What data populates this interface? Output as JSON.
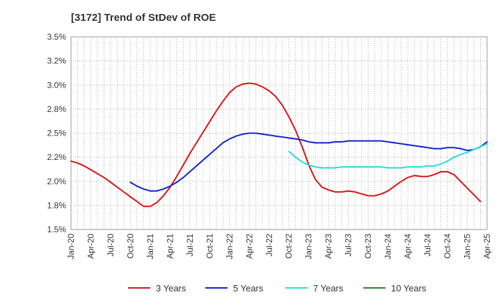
{
  "chart_data": {
    "type": "line",
    "title": "[3172]  Trend of StDev of ROE",
    "xlabel": "",
    "ylabel": "",
    "ylim": [
      1.5,
      3.5
    ],
    "y_ticks": [
      1.5,
      1.75,
      2.0,
      2.25,
      2.5,
      2.75,
      3.0,
      3.25,
      3.5
    ],
    "y_tick_labels": [
      "1.5%",
      "1.8%",
      "2.0%",
      "2.2%",
      "2.5%",
      "2.8%",
      "3.0%",
      "3.2%",
      "3.5%"
    ],
    "x_tick_labels": [
      "Jan-20",
      "Apr-20",
      "Jul-20",
      "Oct-20",
      "Jan-21",
      "Apr-21",
      "Jul-21",
      "Oct-21",
      "Jan-22",
      "Apr-22",
      "Jul-22",
      "Oct-22",
      "Jan-23",
      "Apr-23",
      "Jul-23",
      "Oct-23",
      "Jan-24",
      "Apr-24",
      "Jul-24",
      "Oct-24",
      "Jan-25",
      "Apr-25"
    ],
    "grid": true,
    "legend_position": "bottom",
    "series": [
      {
        "name": "3 Years",
        "color": "#dd1111",
        "points": [
          [
            "Jan-20",
            2.21
          ],
          [
            "Feb-20",
            2.19
          ],
          [
            "Mar-20",
            2.16
          ],
          [
            "Apr-20",
            2.12
          ],
          [
            "May-20",
            2.08
          ],
          [
            "Jun-20",
            2.04
          ],
          [
            "Jul-20",
            1.99
          ],
          [
            "Aug-20",
            1.94
          ],
          [
            "Sep-20",
            1.89
          ],
          [
            "Oct-20",
            1.84
          ],
          [
            "Nov-20",
            1.79
          ],
          [
            "Dec-20",
            1.74
          ],
          [
            "Jan-21",
            1.74
          ],
          [
            "Feb-21",
            1.78
          ],
          [
            "Mar-21",
            1.85
          ],
          [
            "Apr-21",
            1.94
          ],
          [
            "May-21",
            2.05
          ],
          [
            "Jun-21",
            2.17
          ],
          [
            "Jul-21",
            2.29
          ],
          [
            "Aug-21",
            2.4
          ],
          [
            "Sep-21",
            2.51
          ],
          [
            "Oct-21",
            2.62
          ],
          [
            "Nov-21",
            2.73
          ],
          [
            "Dec-21",
            2.83
          ],
          [
            "Jan-22",
            2.92
          ],
          [
            "Feb-22",
            2.98
          ],
          [
            "Mar-22",
            3.01
          ],
          [
            "Apr-22",
            3.02
          ],
          [
            "May-22",
            3.01
          ],
          [
            "Jun-22",
            2.98
          ],
          [
            "Jul-22",
            2.94
          ],
          [
            "Aug-22",
            2.88
          ],
          [
            "Sep-22",
            2.79
          ],
          [
            "Oct-22",
            2.67
          ],
          [
            "Nov-22",
            2.53
          ],
          [
            "Dec-22",
            2.36
          ],
          [
            "Jan-23",
            2.17
          ],
          [
            "Feb-23",
            2.02
          ],
          [
            "Mar-23",
            1.94
          ],
          [
            "Apr-23",
            1.91
          ],
          [
            "May-23",
            1.89
          ],
          [
            "Jun-23",
            1.89
          ],
          [
            "Jul-23",
            1.9
          ],
          [
            "Aug-23",
            1.89
          ],
          [
            "Sep-23",
            1.87
          ],
          [
            "Oct-23",
            1.85
          ],
          [
            "Nov-23",
            1.85
          ],
          [
            "Dec-23",
            1.87
          ],
          [
            "Jan-24",
            1.9
          ],
          [
            "Feb-24",
            1.95
          ],
          [
            "Mar-24",
            2.0
          ],
          [
            "Apr-24",
            2.04
          ],
          [
            "May-24",
            2.06
          ],
          [
            "Jun-24",
            2.05
          ],
          [
            "Jul-24",
            2.05
          ],
          [
            "Aug-24",
            2.07
          ],
          [
            "Sep-24",
            2.1
          ],
          [
            "Oct-24",
            2.1
          ],
          [
            "Nov-24",
            2.07
          ],
          [
            "Dec-24",
            2.0
          ],
          [
            "Jan-25",
            1.93
          ],
          [
            "Feb-25",
            1.86
          ],
          [
            "Mar-25",
            1.79
          ]
        ]
      },
      {
        "name": "5 Years",
        "color": "#1122cc",
        "points": [
          [
            "Oct-20",
            1.99
          ],
          [
            "Nov-20",
            1.95
          ],
          [
            "Dec-20",
            1.92
          ],
          [
            "Jan-21",
            1.9
          ],
          [
            "Feb-21",
            1.9
          ],
          [
            "Mar-21",
            1.92
          ],
          [
            "Apr-21",
            1.95
          ],
          [
            "May-21",
            1.99
          ],
          [
            "Jun-21",
            2.04
          ],
          [
            "Jul-21",
            2.1
          ],
          [
            "Aug-21",
            2.16
          ],
          [
            "Sep-21",
            2.22
          ],
          [
            "Oct-21",
            2.28
          ],
          [
            "Nov-21",
            2.34
          ],
          [
            "Dec-21",
            2.4
          ],
          [
            "Jan-22",
            2.44
          ],
          [
            "Feb-22",
            2.47
          ],
          [
            "Mar-22",
            2.49
          ],
          [
            "Apr-22",
            2.5
          ],
          [
            "May-22",
            2.5
          ],
          [
            "Jun-22",
            2.49
          ],
          [
            "Jul-22",
            2.48
          ],
          [
            "Aug-22",
            2.47
          ],
          [
            "Sep-22",
            2.46
          ],
          [
            "Oct-22",
            2.45
          ],
          [
            "Nov-22",
            2.44
          ],
          [
            "Dec-22",
            2.43
          ],
          [
            "Jan-23",
            2.41
          ],
          [
            "Feb-23",
            2.4
          ],
          [
            "Mar-23",
            2.4
          ],
          [
            "Apr-23",
            2.4
          ],
          [
            "May-23",
            2.41
          ],
          [
            "Jun-23",
            2.41
          ],
          [
            "Jul-23",
            2.42
          ],
          [
            "Aug-23",
            2.42
          ],
          [
            "Sep-23",
            2.42
          ],
          [
            "Oct-23",
            2.42
          ],
          [
            "Nov-23",
            2.42
          ],
          [
            "Dec-23",
            2.42
          ],
          [
            "Jan-24",
            2.41
          ],
          [
            "Feb-24",
            2.4
          ],
          [
            "Mar-24",
            2.39
          ],
          [
            "Apr-24",
            2.38
          ],
          [
            "May-24",
            2.37
          ],
          [
            "Jun-24",
            2.36
          ],
          [
            "Jul-24",
            2.35
          ],
          [
            "Aug-24",
            2.34
          ],
          [
            "Sep-24",
            2.34
          ],
          [
            "Oct-24",
            2.35
          ],
          [
            "Nov-24",
            2.35
          ],
          [
            "Dec-24",
            2.34
          ],
          [
            "Jan-25",
            2.32
          ],
          [
            "Feb-25",
            2.33
          ],
          [
            "Mar-25",
            2.36
          ],
          [
            "Apr-25",
            2.41
          ]
        ]
      },
      {
        "name": "7 Years",
        "color": "#22dddd",
        "points": [
          [
            "Oct-22",
            2.31
          ],
          [
            "Nov-22",
            2.25
          ],
          [
            "Dec-22",
            2.2
          ],
          [
            "Jan-23",
            2.17
          ],
          [
            "Feb-23",
            2.15
          ],
          [
            "Mar-23",
            2.14
          ],
          [
            "Apr-23",
            2.14
          ],
          [
            "May-23",
            2.14
          ],
          [
            "Jun-23",
            2.15
          ],
          [
            "Jul-23",
            2.15
          ],
          [
            "Aug-23",
            2.15
          ],
          [
            "Sep-23",
            2.15
          ],
          [
            "Oct-23",
            2.15
          ],
          [
            "Nov-23",
            2.15
          ],
          [
            "Dec-23",
            2.15
          ],
          [
            "Jan-24",
            2.14
          ],
          [
            "Feb-24",
            2.14
          ],
          [
            "Mar-24",
            2.14
          ],
          [
            "Apr-24",
            2.15
          ],
          [
            "May-24",
            2.15
          ],
          [
            "Jun-24",
            2.15
          ],
          [
            "Jul-24",
            2.16
          ],
          [
            "Aug-24",
            2.16
          ],
          [
            "Sep-24",
            2.18
          ],
          [
            "Oct-24",
            2.21
          ],
          [
            "Nov-24",
            2.25
          ],
          [
            "Dec-24",
            2.28
          ],
          [
            "Jan-25",
            2.3
          ],
          [
            "Feb-25",
            2.33
          ],
          [
            "Mar-25",
            2.36
          ],
          [
            "Apr-25",
            2.39
          ]
        ]
      },
      {
        "name": "10 Years",
        "color": "#228822",
        "points": []
      }
    ]
  }
}
